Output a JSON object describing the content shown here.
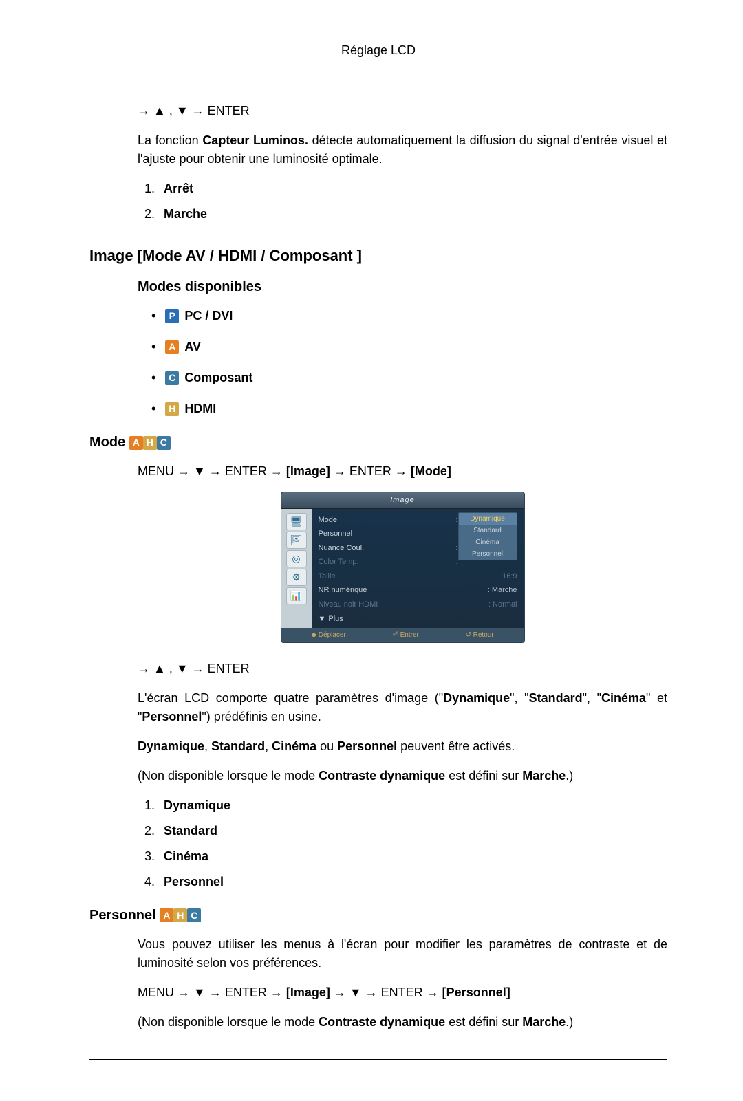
{
  "header": {
    "title": "Réglage LCD"
  },
  "section1": {
    "nav": "→ ▲ , ▼ → ENTER",
    "para_prefix": "La fonction ",
    "para_bold": "Capteur Luminos.",
    "para_suffix": " détecte automatiquement la diffusion du signal d'entrée visuel et l'ajuste pour obtenir une luminosité optimale.",
    "list": [
      "Arrêt",
      "Marche"
    ]
  },
  "section2": {
    "h2": "Image [Mode AV / HDMI / Composant ]",
    "h3": "Modes disponibles",
    "modes": [
      {
        "badge": "P",
        "badgeClass": "badge-P",
        "label": "PC / DVI"
      },
      {
        "badge": "A",
        "badgeClass": "badge-A",
        "label": "AV"
      },
      {
        "badge": "C",
        "badgeClass": "badge-C",
        "label": "Composant"
      },
      {
        "badge": "H",
        "badgeClass": "badge-H",
        "label": "HDMI"
      }
    ]
  },
  "section3": {
    "title": "Mode",
    "badges": [
      "A",
      "H",
      "C"
    ],
    "badgeClasses": [
      "badge-A",
      "badge-H",
      "badge-C"
    ],
    "path": {
      "p1": "MENU → ▼ → ENTER → ",
      "bracket1": "[Image]",
      "p2": " → ENTER → ",
      "bracket2": "[Mode]"
    },
    "osd": {
      "title": "Image",
      "icons": [
        "🖥",
        "🖼",
        "◎",
        "⚙",
        "📊"
      ],
      "rows": [
        {
          "label": "Mode",
          "class": ""
        },
        {
          "label": "Personnel",
          "value": "",
          "class": ""
        },
        {
          "label": "Nuance Coul.",
          "value": "",
          "class": ""
        },
        {
          "label": "Color Temp.",
          "value": "",
          "class": "dim"
        },
        {
          "label": "Taille",
          "value": ": 16:9",
          "class": "dim"
        },
        {
          "label": "NR numérique",
          "value": ": Marche",
          "class": ""
        },
        {
          "label": "Niveau noir HDMI",
          "value": ": Normal",
          "class": "dim"
        }
      ],
      "dropdown": [
        "Dynamique",
        "Standard",
        "Cinéma",
        "Personnel"
      ],
      "dropdown_selected": 0,
      "plus": "Plus",
      "footer": [
        "◆ Déplacer",
        "⏎ Entrer",
        "↺ Retour"
      ]
    },
    "nav2": "→ ▲ , ▼ → ENTER",
    "para2_a": "L'écran LCD comporte quatre paramètres d'image (\"",
    "para2_b1": "Dynamique",
    "para2_c": "\", \"",
    "para2_b2": "Standard",
    "para2_d": "\", \"",
    "para2_b3": "Cinéma",
    "para2_e": "\" et \"",
    "para2_b4": "Personnel",
    "para2_f": "\") prédéfinis en usine.",
    "para3_a": "Dynamique",
    "para3_b": ", ",
    "para3_c": "Standard",
    "para3_d": ", ",
    "para3_e": "Cinéma",
    "para3_f": " ou ",
    "para3_g": "Personnel",
    "para3_h": " peuvent être activés.",
    "para4_a": "(Non disponible lorsque le mode ",
    "para4_b": "Contraste dynamique",
    "para4_c": " est défini sur ",
    "para4_d": "Marche",
    "para4_e": ".)",
    "list": [
      "Dynamique",
      "Standard",
      "Cinéma",
      "Personnel"
    ]
  },
  "section4": {
    "title": "Personnel",
    "badges": [
      "A",
      "H",
      "C"
    ],
    "badgeClasses": [
      "badge-A",
      "badge-H",
      "badge-C"
    ],
    "para1": "Vous pouvez utiliser les menus à l'écran pour modifier les paramètres de contraste et de luminosité selon vos préférences.",
    "path": {
      "p1": "MENU → ▼ → ENTER → ",
      "bracket1": "[Image]",
      "p2": " → ▼ → ENTER → ",
      "bracket2": "[Personnel]"
    },
    "para2_a": "(Non disponible lorsque le mode ",
    "para2_b": "Contraste dynamique",
    "para2_c": " est défini sur ",
    "para2_d": "Marche",
    "para2_e": ".)"
  }
}
